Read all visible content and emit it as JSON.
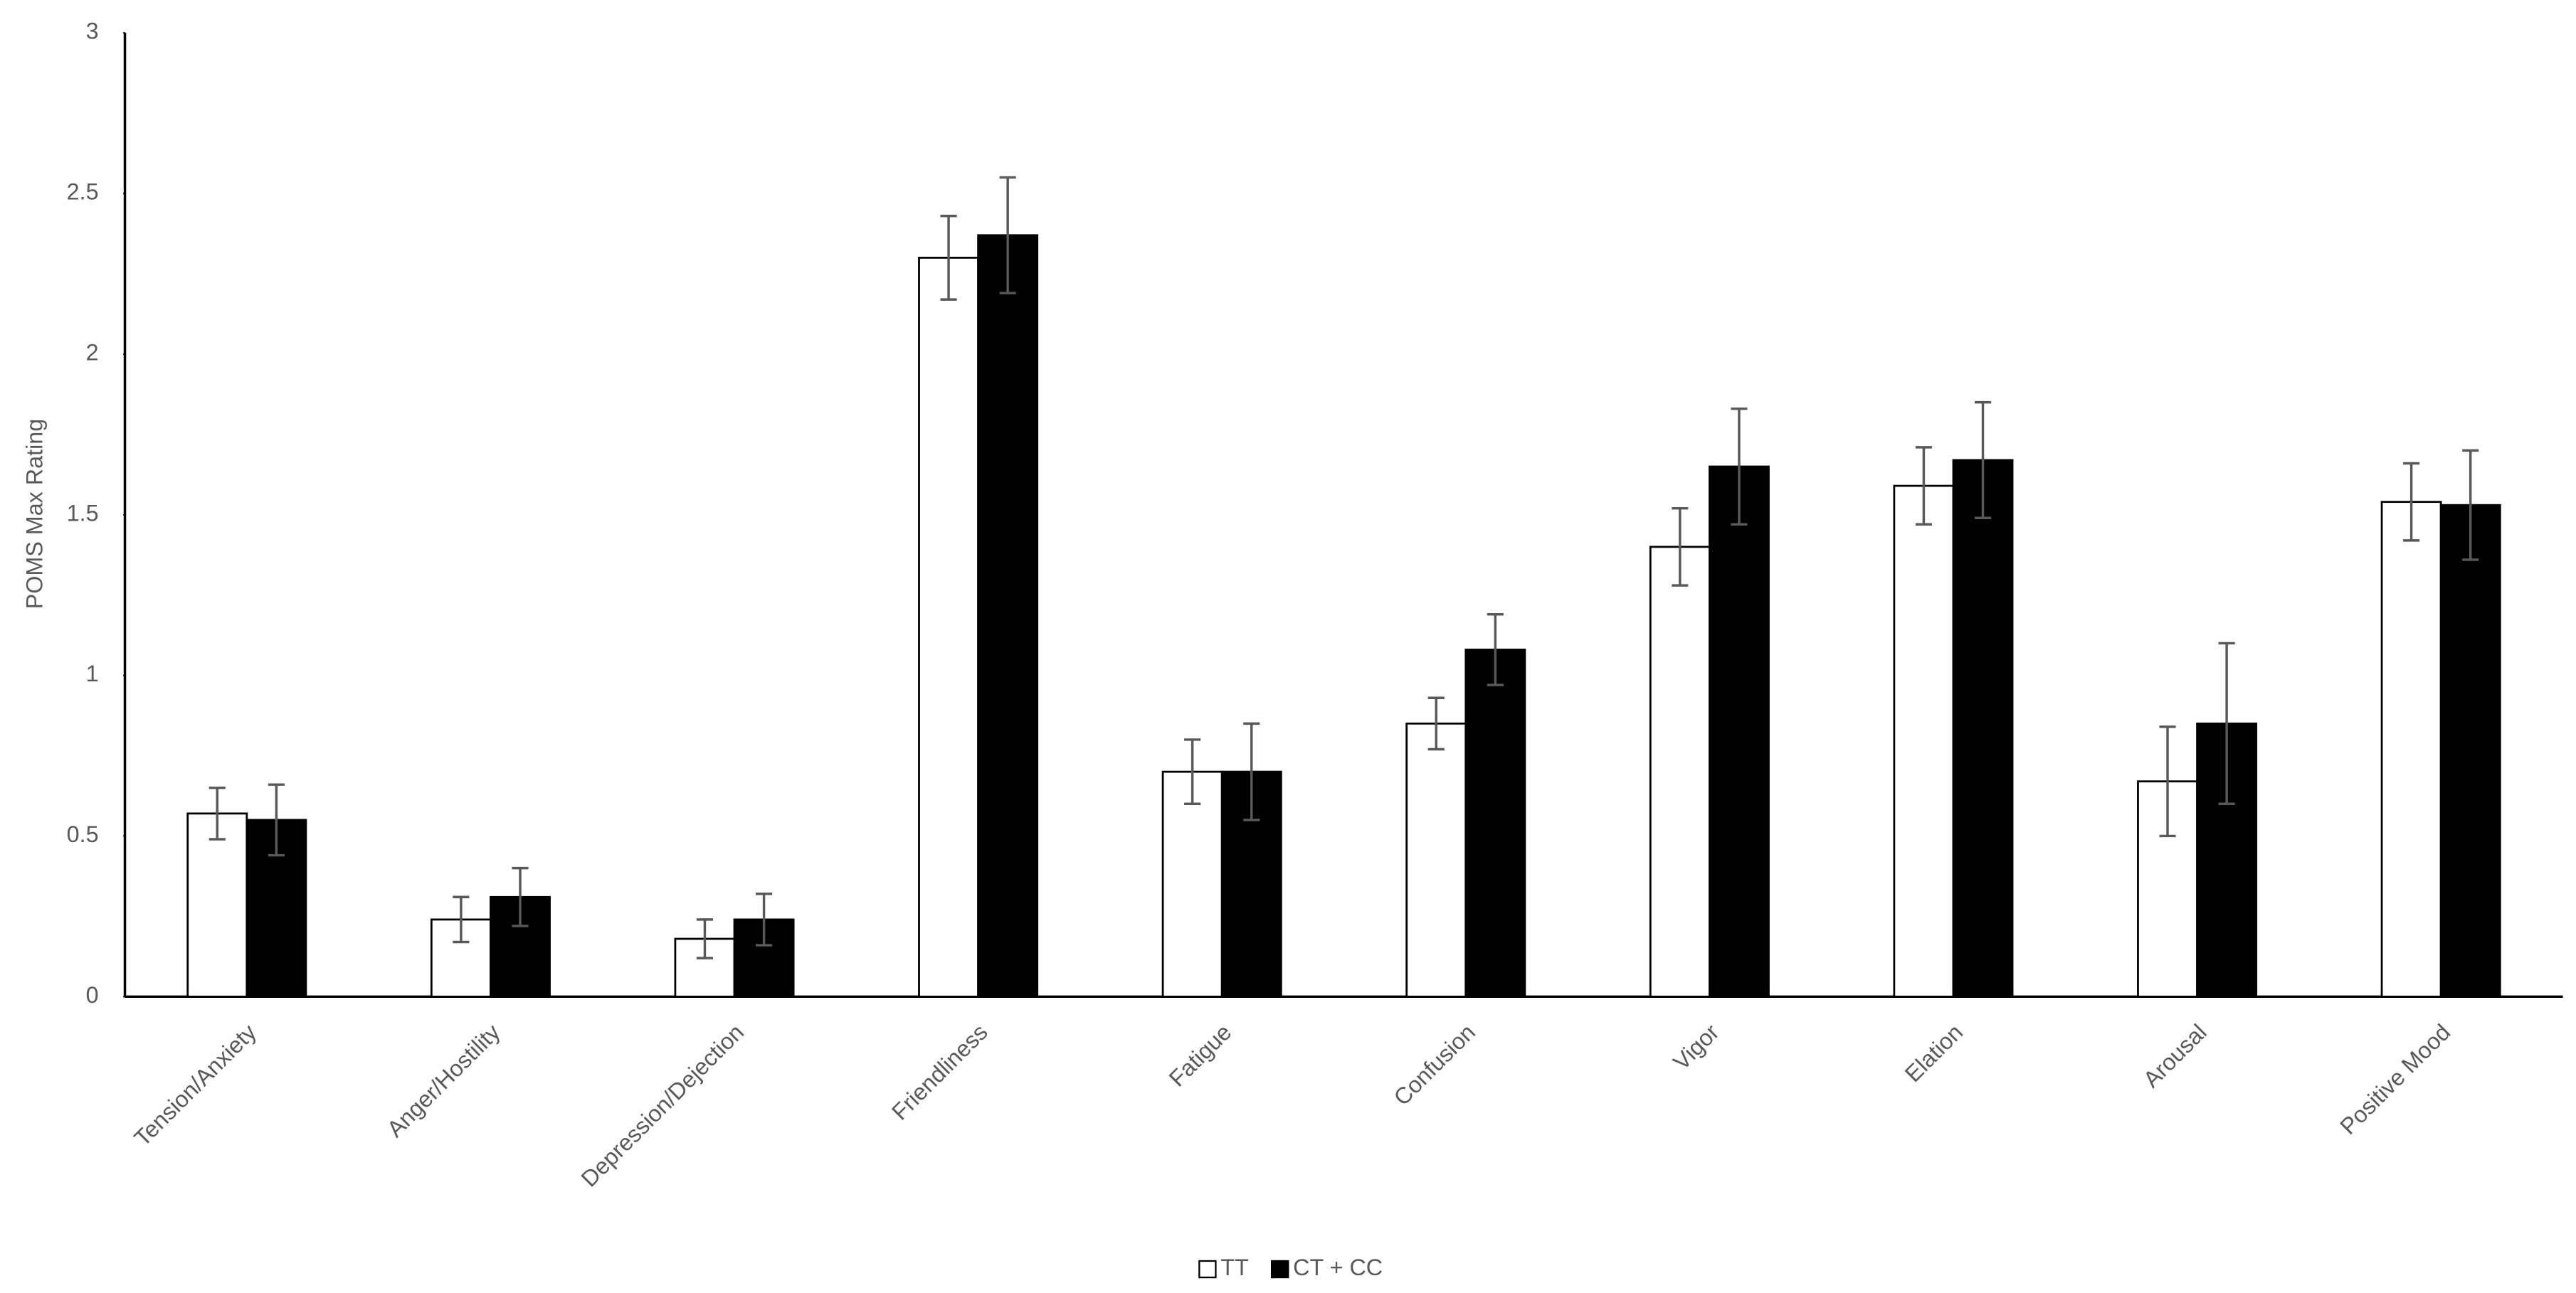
{
  "chart_data": {
    "type": "bar",
    "y_label": "POMS Max Rating",
    "categories": [
      "Tension/Anxiety",
      "Anger/Hostility",
      "Depression/Dejection",
      "Friendliness",
      "Fatigue",
      "Confusion",
      "Vigor",
      "Elation",
      "Arousal",
      "Positive Mood"
    ],
    "series": [
      {
        "name": "TT",
        "color": "#ffffff",
        "values": [
          0.57,
          0.24,
          0.18,
          2.3,
          0.7,
          0.85,
          1.4,
          1.59,
          0.67,
          1.54
        ],
        "errors": [
          0.08,
          0.07,
          0.06,
          0.13,
          0.1,
          0.08,
          0.12,
          0.12,
          0.17,
          0.12
        ]
      },
      {
        "name": "CT + CC",
        "color": "#000000",
        "values": [
          0.55,
          0.31,
          0.24,
          2.37,
          0.7,
          1.08,
          1.65,
          1.67,
          0.85,
          1.53
        ],
        "errors": [
          0.11,
          0.09,
          0.08,
          0.18,
          0.15,
          0.11,
          0.18,
          0.18,
          0.25,
          0.17
        ]
      }
    ],
    "ylim": [
      0,
      3
    ],
    "yticks": [
      0,
      0.5,
      1,
      1.5,
      2,
      2.5,
      3
    ],
    "grid": false,
    "legend": "bottom"
  }
}
